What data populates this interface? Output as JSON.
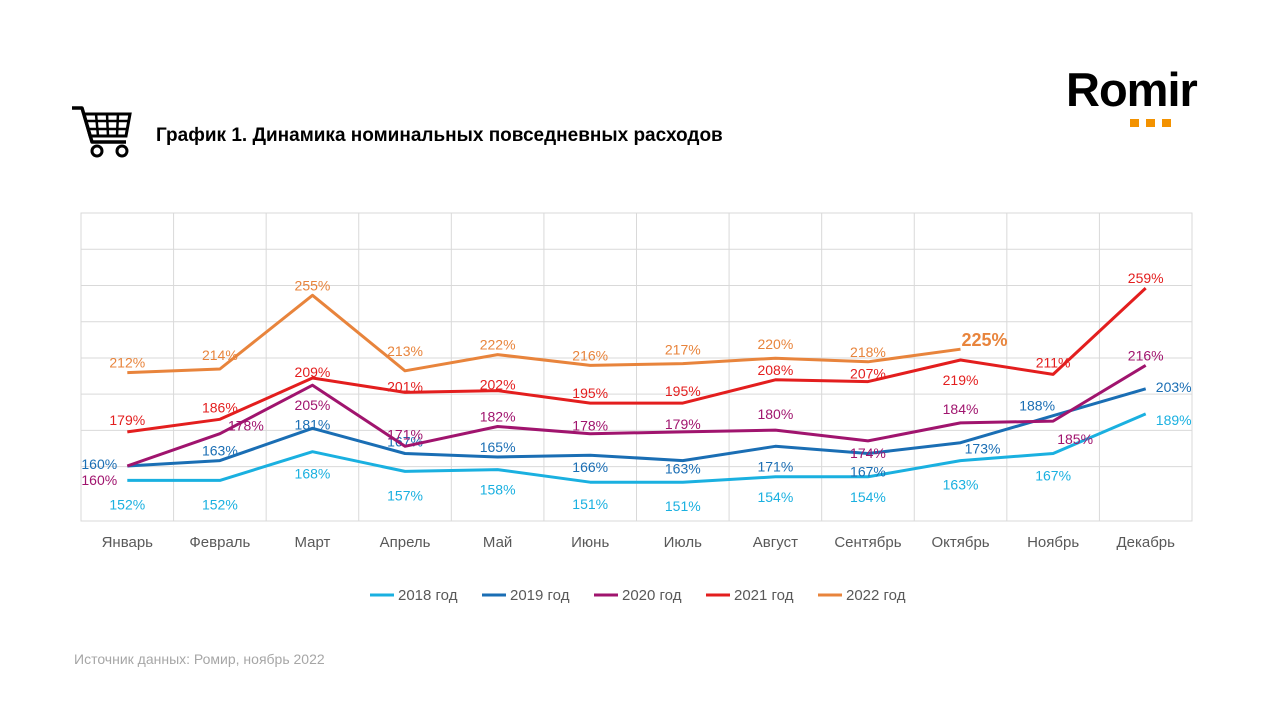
{
  "header": {
    "title": "График 1. Динамика номинальных повседневных расходов",
    "logo_text": "Romir",
    "cart_icon": "shopping-cart-icon"
  },
  "footer": {
    "source": "Источник данных: Ромир, ноябрь 2022"
  },
  "chart_data": {
    "type": "line",
    "title": "График 1. Динамика номинальных повседневных расходов",
    "xlabel": "",
    "ylabel": "",
    "categories": [
      "Январь",
      "Февраль",
      "Март",
      "Апрель",
      "Май",
      "Июнь",
      "Июль",
      "Август",
      "Сентябрь",
      "Октябрь",
      "Ноябрь",
      "Декабрь"
    ],
    "grid": true,
    "legend_position": "bottom",
    "value_suffix": "%",
    "series": [
      {
        "name": "2018 год",
        "color": "#1ab0e0",
        "values": [
          152,
          152,
          168,
          157,
          158,
          151,
          151,
          154,
          154,
          163,
          167,
          189
        ]
      },
      {
        "name": "2019 год",
        "color": "#1a6eb4",
        "values": [
          160,
          163,
          181,
          167,
          165,
          166,
          163,
          171,
          167,
          173,
          188,
          203
        ]
      },
      {
        "name": "2020 год",
        "color": "#a0146e",
        "values": [
          160,
          178,
          205,
          171,
          182,
          178,
          179,
          180,
          174,
          184,
          185,
          216
        ]
      },
      {
        "name": "2021 год",
        "color": "#e31e1e",
        "values": [
          179,
          186,
          209,
          201,
          202,
          195,
          195,
          208,
          207,
          219,
          211,
          259
        ]
      },
      {
        "name": "2022 год",
        "color": "#e8843c",
        "values": [
          212,
          214,
          255,
          213,
          222,
          216,
          217,
          220,
          218,
          225,
          null,
          null
        ],
        "highlight_index": 9
      }
    ]
  }
}
